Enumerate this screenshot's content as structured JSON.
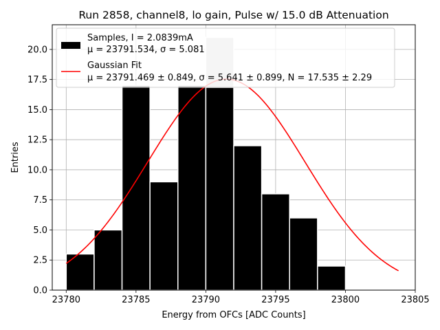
{
  "chart_data": {
    "type": "bar",
    "title": "Run 2858, channel8, lo gain, Pulse w/ 15.0 dB Attenuation",
    "xlabel": "Energy from OFCs [ADC Counts]",
    "ylabel": "Entries",
    "xlim": [
      23779.0,
      23805.0
    ],
    "ylim": [
      0,
      22.05
    ],
    "x_ticks": [
      23780,
      23785,
      23790,
      23795,
      23800,
      23805
    ],
    "x_tick_labels": [
      "23780",
      "23785",
      "23790",
      "23795",
      "23800",
      "23805"
    ],
    "y_ticks": [
      0,
      2.5,
      5,
      7.5,
      10,
      12.5,
      15,
      17.5,
      20
    ],
    "y_tick_labels": [
      "0.0",
      "2.5",
      "5.0",
      "7.5",
      "10.0",
      "12.5",
      "15.0",
      "17.5",
      "20.0"
    ],
    "grid": true,
    "legend_position": "top-left",
    "histogram": {
      "bin_edges": [
        23780.0,
        23782.0,
        23784.0,
        23786.0,
        23788.0,
        23790.0,
        23792.0,
        23794.0,
        23796.0,
        23798.0,
        23800.0,
        23802.0
      ],
      "counts": [
        3,
        5,
        17,
        9,
        17,
        21,
        12,
        8,
        6,
        2,
        0
      ],
      "color": "#000000",
      "edge_color": "#ffffff",
      "highlight_color": "#cccccc"
    },
    "fit": {
      "mu": 23791.469,
      "sigma": 5.641,
      "N": 17.535,
      "x_range": [
        23780.0,
        23803.8
      ],
      "color": "#ff0000"
    },
    "legend": {
      "samples_line1": "Samples, I = 2.0839mA",
      "samples_line2": "μ = 23791.534, σ = 5.081",
      "fit_line1": "Gaussian Fit",
      "fit_line2": "μ = 23791.469 ± 0.849, σ = 5.641 ± 0.899, N = 17.535 ± 2.29"
    }
  }
}
